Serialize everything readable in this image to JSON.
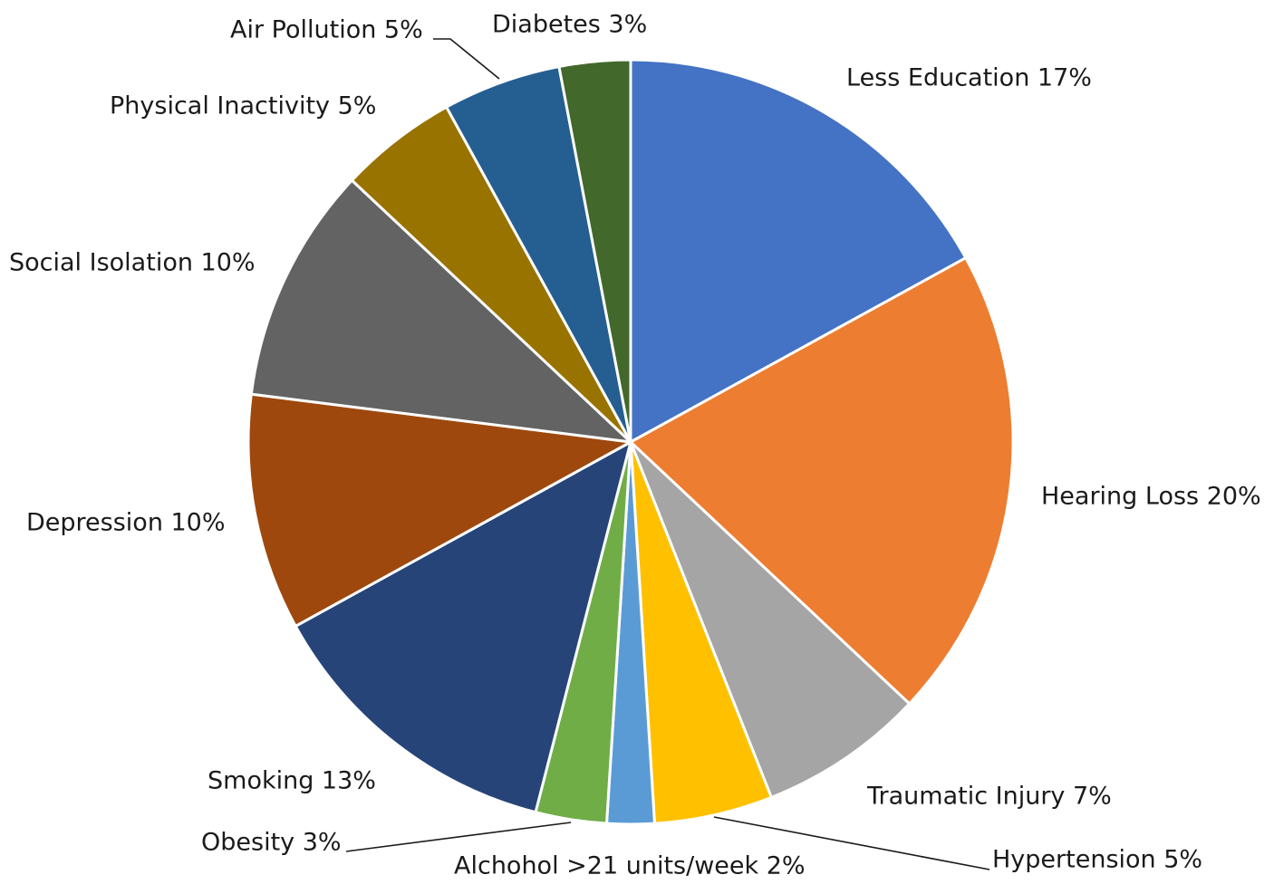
{
  "chart_data": {
    "type": "pie",
    "title": "",
    "start_angle_deg": 0,
    "direction": "clockwise",
    "slices": [
      {
        "name": "Less Education",
        "value": 17,
        "label": "Less Education 17%",
        "color": "#4472C4"
      },
      {
        "name": "Hearing Loss",
        "value": 20,
        "label": "Hearing Loss 20%",
        "color": "#ED7D31"
      },
      {
        "name": "Traumatic Injury",
        "value": 7,
        "label": "Traumatic Injury 7%",
        "color": "#A5A5A5"
      },
      {
        "name": "Hypertension",
        "value": 5,
        "label": "Hypertension 5%",
        "color": "#FFC000"
      },
      {
        "name": "Alchohol >21 units/week",
        "value": 2,
        "label": "Alchohol >21 units/week 2%",
        "color": "#5B9BD5"
      },
      {
        "name": "Obesity",
        "value": 3,
        "label": "Obesity 3%",
        "color": "#70AD47"
      },
      {
        "name": "Smoking",
        "value": 13,
        "label": "Smoking 13%",
        "color": "#264478"
      },
      {
        "name": "Depression",
        "value": 10,
        "label": "Depression 10%",
        "color": "#9E480E"
      },
      {
        "name": "Social Isolation",
        "value": 10,
        "label": "Social Isolation 10%",
        "color": "#636363"
      },
      {
        "name": "Physical Inactivity",
        "value": 5,
        "label": "Physical Inactivity 5%",
        "color": "#997300"
      },
      {
        "name": "Air Pollution",
        "value": 5,
        "label": "Air Pollution 5%",
        "color": "#255E91"
      },
      {
        "name": "Diabetes",
        "value": 3,
        "label": "Diabetes 3%",
        "color": "#43682B"
      }
    ]
  }
}
